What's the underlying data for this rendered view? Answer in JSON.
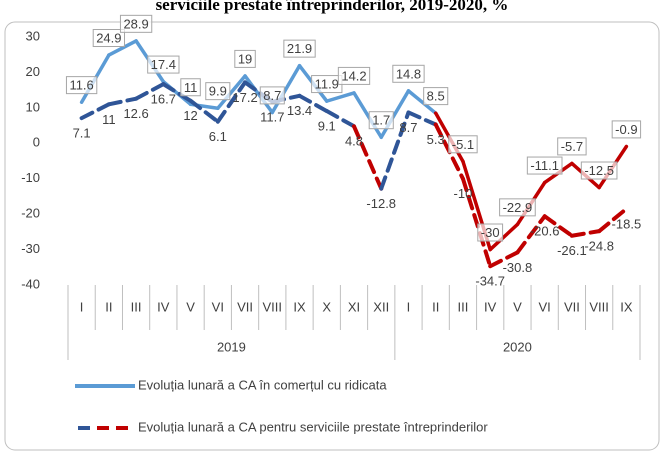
{
  "chart_data": {
    "type": "line",
    "title": "serviciile prestate întreprinderilor, 2019-2020, %",
    "groups": [
      {
        "label": "2019",
        "categories": [
          "I",
          "II",
          "III",
          "IV",
          "V",
          "VI",
          "VII",
          "VIII",
          "IX",
          "X",
          "XI",
          "XII"
        ]
      },
      {
        "label": "2020",
        "categories": [
          "I",
          "II",
          "III",
          "IV",
          "V",
          "VI",
          "VII",
          "VIII",
          "IX"
        ]
      }
    ],
    "series": [
      {
        "name": "Evoluția lunară a CA în comerțul cu ridicata",
        "color": "#5b9bd5",
        "style": "solid",
        "values": [
          11.6,
          24.9,
          28.9,
          17.4,
          11,
          9.9,
          19,
          8.7,
          21.9,
          11.9,
          14.2,
          1.7,
          14.8,
          8.5,
          -5.1,
          -30,
          -22.9,
          -11.1,
          -5.7,
          -12.5,
          -0.9
        ],
        "point_colors": [
          "#5b9bd5",
          "#5b9bd5",
          "#5b9bd5",
          "#5b9bd5",
          "#5b9bd5",
          "#5b9bd5",
          "#5b9bd5",
          "#5b9bd5",
          "#5b9bd5",
          "#5b9bd5",
          "#5b9bd5",
          "#5b9bd5",
          "#5b9bd5",
          "#5b9bd5",
          "#c00000",
          "#c00000",
          "#c00000",
          "#c00000",
          "#c00000",
          "#c00000",
          "#c00000"
        ]
      },
      {
        "name": "Evoluția lunară a CA pentru serviciile prestate întreprinderilor",
        "color": "#2f5597",
        "style": "dashed",
        "values": [
          7.1,
          11,
          12.6,
          16.7,
          12,
          6.1,
          17.2,
          11.7,
          13.4,
          9.1,
          4.8,
          -12.8,
          8.7,
          5.3,
          -10,
          -34.7,
          -30.8,
          -20.6,
          -26.1,
          -24.8,
          -18.5
        ],
        "point_colors": [
          "#2f5597",
          "#2f5597",
          "#2f5597",
          "#2f5597",
          "#2f5597",
          "#2f5597",
          "#2f5597",
          "#2f5597",
          "#2f5597",
          "#2f5597",
          "#2f5597",
          "#c00000",
          "#2f5597",
          "#2f5597",
          "#c00000",
          "#c00000",
          "#c00000",
          "#c00000",
          "#c00000",
          "#c00000",
          "#c00000"
        ]
      }
    ],
    "ylim": [
      -40,
      30
    ],
    "yticks": [
      -40,
      -30,
      -20,
      -10,
      0,
      10,
      20,
      30
    ],
    "grid": false,
    "legend": "bottom"
  }
}
